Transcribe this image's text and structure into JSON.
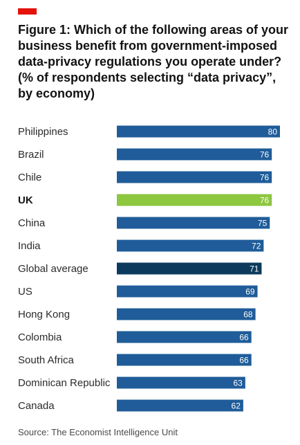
{
  "title": "Figure 1: Which of the following areas of your business benefit from government-imposed data-privacy regulations you operate under? (% of respondents selecting “data privacy”, by economy)",
  "source": "Source: The Economist Intelligence Unit",
  "colors": {
    "tag": "#e3120b",
    "bar": "#1f5c99",
    "highlight": "#8dc63f",
    "average": "#0b3a5c"
  },
  "chart_data": {
    "type": "bar",
    "orientation": "horizontal",
    "title": "Figure 1: Which of the following areas of your business benefit from government-imposed data-privacy regulations you operate under? (% of respondents selecting “data privacy”, by economy)",
    "xlabel": "",
    "ylabel": "",
    "xlim": [
      0,
      80
    ],
    "grid": false,
    "categories": [
      "Philippines",
      "Brazil",
      "Chile",
      "UK",
      "China",
      "India",
      "Global average",
      "US",
      "Hong Kong",
      "Colombia",
      "South Africa",
      "Dominican Republic",
      "Canada"
    ],
    "values": [
      80,
      76,
      76,
      76,
      75,
      72,
      71,
      69,
      68,
      66,
      66,
      63,
      62
    ],
    "highlighted": [
      "UK"
    ],
    "average_category": "Global average"
  }
}
